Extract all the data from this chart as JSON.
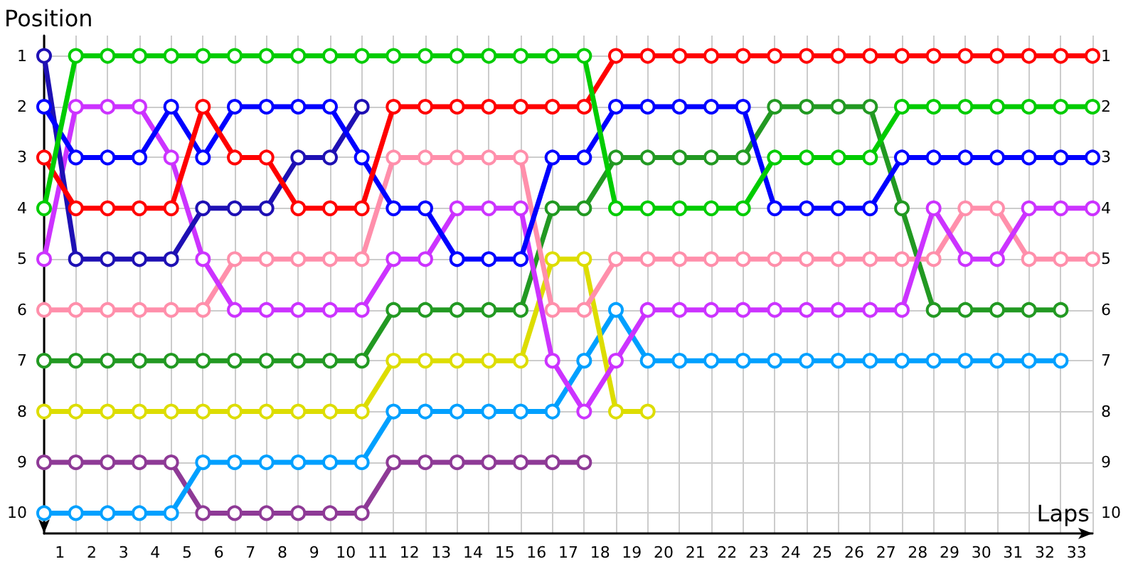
{
  "chart_data": {
    "type": "line",
    "xlabel": "Laps",
    "ylabel": "Position",
    "x": [
      0,
      1,
      2,
      3,
      4,
      5,
      6,
      7,
      8,
      9,
      10,
      11,
      12,
      13,
      14,
      15,
      16,
      17,
      18,
      19,
      20,
      21,
      22,
      23,
      24,
      25,
      26,
      27,
      28,
      29,
      30,
      31,
      32,
      33
    ],
    "xlim": [
      0,
      33
    ],
    "xticks": [
      {
        "value": 0,
        "label": null
      },
      {
        "value": 0.5,
        "label": "1"
      },
      {
        "value": 1,
        "label": null
      },
      {
        "value": 1.5,
        "label": "2"
      },
      {
        "value": 2,
        "label": null
      },
      {
        "value": 2.5,
        "label": "3"
      },
      {
        "value": 3,
        "label": null
      },
      {
        "value": 3.5,
        "label": "4"
      },
      {
        "value": 4,
        "label": null
      },
      {
        "value": 4.5,
        "label": "5"
      },
      {
        "value": 5,
        "label": null
      },
      {
        "value": 5.5,
        "label": "6"
      },
      {
        "value": 6,
        "label": null
      },
      {
        "value": 6.5,
        "label": "7"
      },
      {
        "value": 7,
        "label": null
      },
      {
        "value": 7.5,
        "label": "8"
      },
      {
        "value": 8,
        "label": null
      },
      {
        "value": 8.5,
        "label": "9"
      },
      {
        "value": 9,
        "label": null
      },
      {
        "value": 9.5,
        "label": "10"
      },
      {
        "value": 10,
        "label": null
      },
      {
        "value": 10.5,
        "label": "11"
      },
      {
        "value": 11,
        "label": null
      },
      {
        "value": 11.5,
        "label": "12"
      },
      {
        "value": 12,
        "label": null
      },
      {
        "value": 12.5,
        "label": "13"
      },
      {
        "value": 13,
        "label": null
      },
      {
        "value": 13.5,
        "label": "14"
      },
      {
        "value": 14,
        "label": null
      },
      {
        "value": 14.5,
        "label": "15"
      },
      {
        "value": 15,
        "label": null
      },
      {
        "value": 15.5,
        "label": "16"
      },
      {
        "value": 16,
        "label": null
      },
      {
        "value": 16.5,
        "label": "17"
      },
      {
        "value": 17,
        "label": null
      },
      {
        "value": 17.5,
        "label": "18"
      },
      {
        "value": 18,
        "label": null
      },
      {
        "value": 18.5,
        "label": "19"
      },
      {
        "value": 19,
        "label": null
      },
      {
        "value": 19.5,
        "label": "20"
      },
      {
        "value": 20,
        "label": null
      },
      {
        "value": 20.5,
        "label": "21"
      },
      {
        "value": 21,
        "label": null
      },
      {
        "value": 21.5,
        "label": "22"
      },
      {
        "value": 22,
        "label": null
      },
      {
        "value": 22.5,
        "label": "23"
      },
      {
        "value": 23,
        "label": null
      },
      {
        "value": 23.5,
        "label": "24"
      },
      {
        "value": 24,
        "label": null
      },
      {
        "value": 24.5,
        "label": "25"
      },
      {
        "value": 25,
        "label": null
      },
      {
        "value": 25.5,
        "label": "26"
      },
      {
        "value": 26,
        "label": null
      },
      {
        "value": 26.5,
        "label": "27"
      },
      {
        "value": 27,
        "label": null
      },
      {
        "value": 27.5,
        "label": "28"
      },
      {
        "value": 28,
        "label": null
      },
      {
        "value": 28.5,
        "label": "29"
      },
      {
        "value": 29,
        "label": null
      },
      {
        "value": 29.5,
        "label": "30"
      },
      {
        "value": 30,
        "label": null
      },
      {
        "value": 30.5,
        "label": "31"
      },
      {
        "value": 31,
        "label": null
      },
      {
        "value": 31.5,
        "label": "32"
      },
      {
        "value": 32,
        "label": null
      },
      {
        "value": 32.5,
        "label": "33"
      },
      {
        "value": 33,
        "label": null
      }
    ],
    "ylim": [
      10.4,
      0.6
    ],
    "yticks": [
      1,
      2,
      3,
      4,
      5,
      6,
      7,
      8,
      9,
      10
    ],
    "y2lim": [
      10.4,
      0.6
    ],
    "y2ticks": [
      1,
      2,
      3,
      4,
      5,
      6,
      7,
      8,
      9,
      10
    ],
    "grid": true,
    "marker": "circle",
    "line_style": "solid",
    "series": [
      {
        "color": "#8e3a96",
        "values": [
          9,
          9,
          9,
          9,
          9,
          10,
          10,
          10,
          10,
          10,
          10,
          9,
          9,
          9,
          9,
          9,
          9,
          9,
          null,
          null,
          null,
          null,
          null,
          null,
          null,
          null,
          null,
          null,
          null,
          null,
          null,
          null,
          null,
          null
        ]
      },
      {
        "color": "#00a0ff",
        "values": [
          10,
          10,
          10,
          10,
          10,
          9,
          9,
          9,
          9,
          9,
          9,
          8,
          8,
          8,
          8,
          8,
          8,
          7,
          6,
          7,
          7,
          7,
          7,
          7,
          7,
          7,
          7,
          7,
          7,
          7,
          7,
          7,
          7,
          null
        ]
      },
      {
        "color": "#dddd00",
        "values": [
          8,
          8,
          8,
          8,
          8,
          8,
          8,
          8,
          8,
          8,
          8,
          7,
          7,
          7,
          7,
          7,
          5,
          5,
          8,
          8,
          null,
          null,
          null,
          null,
          null,
          null,
          null,
          null,
          null,
          null,
          null,
          null,
          null,
          null
        ]
      },
      {
        "color": "#229922",
        "values": [
          7,
          7,
          7,
          7,
          7,
          7,
          7,
          7,
          7,
          7,
          7,
          6,
          6,
          6,
          6,
          6,
          4,
          4,
          3,
          3,
          3,
          3,
          3,
          2,
          2,
          2,
          2,
          4,
          6,
          6,
          6,
          6,
          6,
          null
        ]
      },
      {
        "color": "#ff8fab",
        "values": [
          6,
          6,
          6,
          6,
          6,
          6,
          5,
          5,
          5,
          5,
          5,
          3,
          3,
          3,
          3,
          3,
          6,
          6,
          5,
          5,
          5,
          5,
          5,
          5,
          5,
          5,
          5,
          5,
          5,
          4,
          4,
          5,
          5,
          5
        ]
      },
      {
        "color": "#cc33ff",
        "values": [
          5,
          2,
          2,
          2,
          3,
          5,
          6,
          6,
          6,
          6,
          6,
          5,
          5,
          4,
          4,
          4,
          7,
          8,
          7,
          6,
          6,
          6,
          6,
          6,
          6,
          6,
          6,
          6,
          4,
          5,
          5,
          4,
          4,
          4
        ]
      },
      {
        "color": "#1e10b4",
        "values": [
          1,
          5,
          5,
          5,
          5,
          4,
          4,
          4,
          3,
          3,
          2,
          null,
          null,
          null,
          null,
          null,
          null,
          null,
          null,
          null,
          null,
          null,
          null,
          null,
          null,
          null,
          null,
          null,
          null,
          null,
          null,
          null,
          null,
          null
        ]
      },
      {
        "color": "#0000ff",
        "values": [
          2,
          3,
          3,
          3,
          2,
          3,
          2,
          2,
          2,
          2,
          3,
          4,
          4,
          5,
          5,
          5,
          3,
          3,
          2,
          2,
          2,
          2,
          2,
          4,
          4,
          4,
          4,
          3,
          3,
          3,
          3,
          3,
          3,
          3
        ]
      },
      {
        "color": "#ff0000",
        "values": [
          3,
          4,
          4,
          4,
          4,
          2,
          3,
          3,
          4,
          4,
          4,
          2,
          2,
          2,
          2,
          2,
          2,
          2,
          1,
          1,
          1,
          1,
          1,
          1,
          1,
          1,
          1,
          1,
          1,
          1,
          1,
          1,
          1,
          1
        ]
      },
      {
        "color": "#00cc00",
        "values": [
          4,
          1,
          1,
          1,
          1,
          1,
          1,
          1,
          1,
          1,
          1,
          1,
          1,
          1,
          1,
          1,
          1,
          1,
          4,
          4,
          4,
          4,
          4,
          3,
          3,
          3,
          3,
          2,
          2,
          2,
          2,
          2,
          2,
          2
        ]
      }
    ]
  }
}
